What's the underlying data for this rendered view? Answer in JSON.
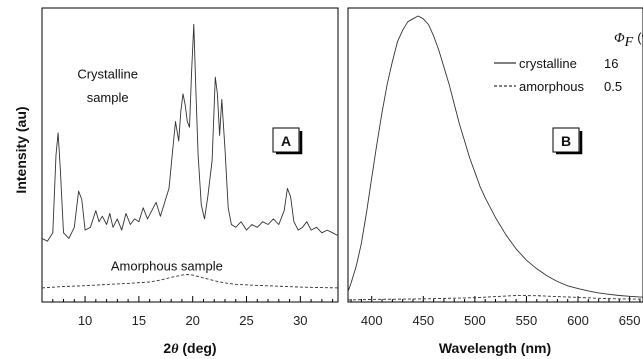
{
  "chart_data": [
    {
      "type": "line",
      "panel_label": "A",
      "xlabel_main": "2",
      "xlabel_symbol": "θ",
      "xlabel_unit": " (deg)",
      "ylabel": "Intensity (au)",
      "xlim": [
        6,
        33.5
      ],
      "ylim": [
        0,
        1
      ],
      "y_ticks_shown": false,
      "grid": false,
      "x_ticks": [
        10,
        15,
        20,
        25,
        30
      ],
      "annotations": [
        {
          "text": "Crystalline",
          "x": 12.1,
          "y": 0.775
        },
        {
          "text": "sample",
          "x": 12.1,
          "y": 0.69
        },
        {
          "text": "Amorphous sample",
          "x": 17.6,
          "y": 0.085
        }
      ],
      "series": [
        {
          "name": "Crystalline sample",
          "style": "solid",
          "x": [
            6.0,
            6.5,
            7.0,
            7.3,
            7.5,
            7.7,
            8.0,
            8.5,
            9.0,
            9.4,
            9.7,
            10.0,
            10.5,
            11.0,
            11.3,
            11.6,
            12.0,
            12.3,
            12.6,
            13.0,
            13.4,
            13.8,
            14.2,
            14.6,
            15.0,
            15.4,
            15.8,
            16.2,
            16.6,
            17.0,
            17.4,
            17.8,
            18.1,
            18.4,
            18.7,
            18.9,
            19.1,
            19.3,
            19.5,
            19.7,
            19.9,
            20.1,
            20.3,
            20.5,
            20.8,
            21.1,
            21.4,
            21.8,
            22.1,
            22.3,
            22.5,
            22.7,
            23.0,
            23.3,
            23.6,
            24.0,
            24.5,
            25.0,
            25.5,
            26.0,
            26.5,
            27.0,
            27.5,
            28.0,
            28.5,
            28.8,
            29.1,
            29.4,
            29.8,
            30.2,
            30.6,
            31.0,
            31.5,
            32.0,
            32.5,
            33.0,
            33.5
          ],
          "values": [
            0.2,
            0.19,
            0.22,
            0.5,
            0.58,
            0.45,
            0.22,
            0.2,
            0.24,
            0.37,
            0.34,
            0.23,
            0.24,
            0.3,
            0.26,
            0.28,
            0.25,
            0.29,
            0.24,
            0.27,
            0.23,
            0.29,
            0.25,
            0.27,
            0.26,
            0.31,
            0.27,
            0.3,
            0.33,
            0.28,
            0.33,
            0.38,
            0.5,
            0.62,
            0.55,
            0.66,
            0.72,
            0.68,
            0.62,
            0.6,
            0.8,
            0.97,
            0.73,
            0.5,
            0.32,
            0.27,
            0.35,
            0.48,
            0.78,
            0.72,
            0.57,
            0.7,
            0.52,
            0.31,
            0.25,
            0.24,
            0.26,
            0.23,
            0.25,
            0.24,
            0.26,
            0.25,
            0.27,
            0.25,
            0.3,
            0.38,
            0.35,
            0.26,
            0.23,
            0.24,
            0.26,
            0.23,
            0.24,
            0.22,
            0.23,
            0.22,
            0.21
          ]
        },
        {
          "name": "Amorphous sample",
          "style": "dashed",
          "x": [
            6,
            8,
            10,
            12,
            14,
            16,
            17,
            18,
            19,
            19.5,
            20,
            21,
            22,
            23,
            24,
            26,
            28,
            30,
            32,
            33.5
          ],
          "values": [
            0.022,
            0.027,
            0.03,
            0.034,
            0.038,
            0.043,
            0.05,
            0.06,
            0.068,
            0.07,
            0.068,
            0.058,
            0.048,
            0.04,
            0.035,
            0.031,
            0.028,
            0.025,
            0.023,
            0.022
          ]
        }
      ]
    },
    {
      "type": "line",
      "panel_label": "B",
      "xlabel": "Wavelength (nm)",
      "xlim": [
        377,
        663
      ],
      "ylim": [
        0,
        1
      ],
      "y_ticks_shown": false,
      "grid": false,
      "x_ticks": [
        400,
        450,
        500,
        550,
        600,
        650
      ],
      "legend": {
        "placement": "top-right",
        "header_symbol": "Φ",
        "header_subscript": "F",
        "header_unit": "(%)",
        "entries": [
          {
            "name": "crystalline",
            "value": "16",
            "style": "solid"
          },
          {
            "name": "amorphous",
            "value": "0.5",
            "style": "dashed"
          }
        ]
      },
      "series": [
        {
          "name": "crystalline",
          "style": "solid",
          "x": [
            377,
            380,
            385,
            390,
            395,
            400,
            405,
            410,
            415,
            420,
            425,
            430,
            435,
            440,
            445,
            450,
            455,
            460,
            465,
            470,
            475,
            480,
            485,
            490,
            495,
            500,
            505,
            510,
            520,
            530,
            540,
            550,
            560,
            570,
            580,
            590,
            600,
            610,
            620,
            630,
            640,
            650,
            663
          ],
          "values": [
            0.03,
            0.06,
            0.12,
            0.2,
            0.31,
            0.43,
            0.55,
            0.66,
            0.76,
            0.84,
            0.91,
            0.95,
            0.98,
            0.99,
            1.0,
            0.99,
            0.97,
            0.93,
            0.88,
            0.82,
            0.76,
            0.69,
            0.62,
            0.56,
            0.5,
            0.45,
            0.4,
            0.36,
            0.29,
            0.23,
            0.18,
            0.14,
            0.11,
            0.085,
            0.065,
            0.05,
            0.04,
            0.032,
            0.025,
            0.02,
            0.016,
            0.013,
            0.01
          ]
        },
        {
          "name": "amorphous",
          "style": "dashed",
          "x": [
            377,
            400,
            450,
            500,
            520,
            540,
            560,
            580,
            600,
            620,
            640,
            663
          ],
          "values": [
            0.0,
            0.002,
            0.004,
            0.008,
            0.012,
            0.016,
            0.015,
            0.012,
            0.009,
            0.006,
            0.004,
            0.003
          ]
        }
      ]
    }
  ]
}
